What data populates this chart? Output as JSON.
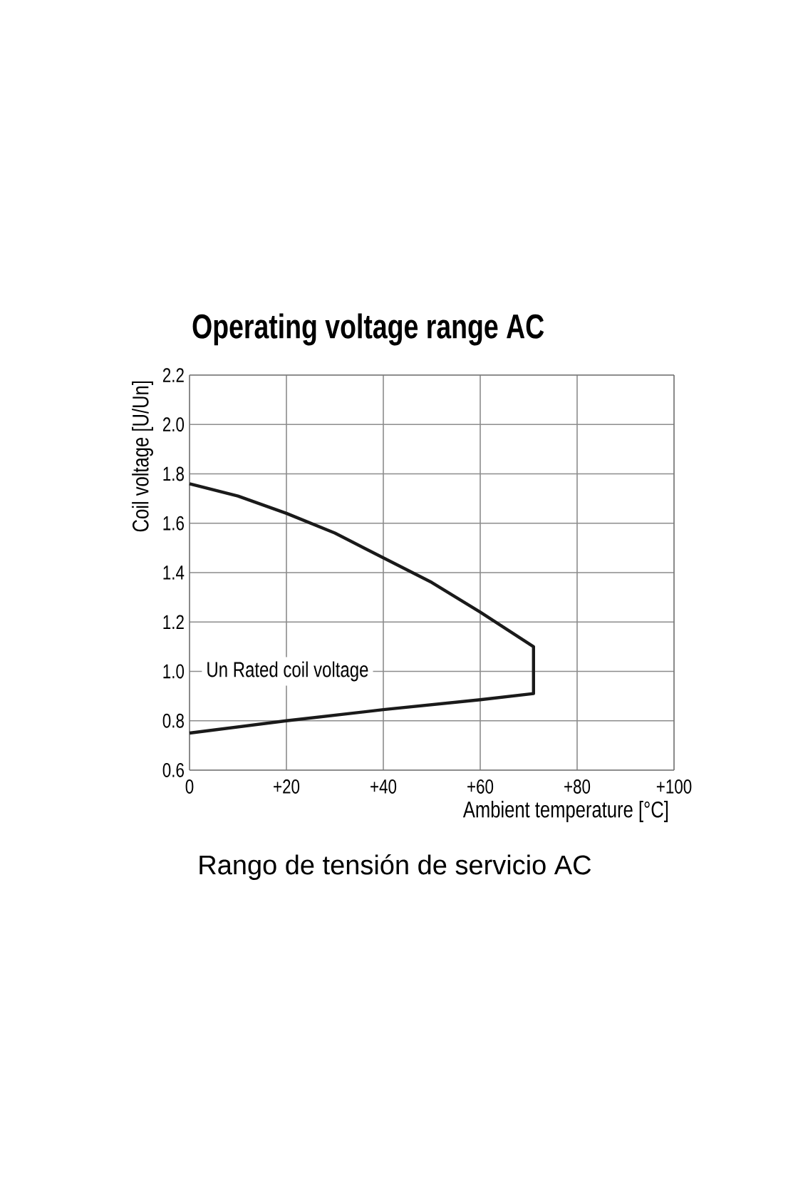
{
  "chart_data": {
    "type": "line",
    "title": "Operating voltage range AC",
    "xlabel": "Ambient temperature [°C]",
    "ylabel": "Coil voltage [U/Un]",
    "x": [
      0,
      10,
      20,
      30,
      40,
      50,
      60,
      71,
      71,
      60,
      40,
      20,
      0
    ],
    "series": [
      {
        "color": "#1a1a1a",
        "values": [
          1.76,
          1.71,
          1.64,
          1.56,
          1.46,
          1.36,
          1.24,
          1.1,
          0.91,
          0.885,
          0.845,
          0.8,
          0.75
        ]
      }
    ],
    "xlim": [
      0,
      100
    ],
    "ylim": [
      0.6,
      2.2
    ],
    "xticks": [
      0,
      {
        "value": 20,
        "label": "+20"
      },
      {
        "value": 40,
        "label": "+40"
      },
      {
        "value": 60,
        "label": "+60"
      },
      {
        "value": 80,
        "label": "+80"
      },
      {
        "value": 100,
        "label": "+100"
      }
    ],
    "yticks": [
      0.6,
      0.8,
      {
        "value": 1,
        "label": "1.0"
      },
      1.2,
      1.4,
      1.6,
      1.8,
      {
        "value": 2,
        "label": "2.0"
      },
      2.2
    ],
    "grid": true,
    "line_style": "solid",
    "marker": "none",
    "annotations": [
      "Un Rated coil voltage",
      "Rango de tensión de servicio AC"
    ]
  }
}
